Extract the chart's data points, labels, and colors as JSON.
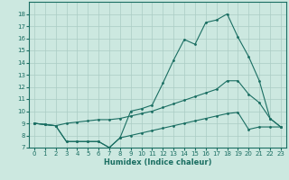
{
  "xlabel": "Humidex (Indice chaleur)",
  "background_color": "#cce8e0",
  "grid_color": "#aaccC4",
  "line_color": "#1a6e62",
  "xlim": [
    -0.5,
    23.5
  ],
  "ylim": [
    7,
    19
  ],
  "xticks": [
    0,
    1,
    2,
    3,
    4,
    5,
    6,
    7,
    8,
    9,
    10,
    11,
    12,
    13,
    14,
    15,
    16,
    17,
    18,
    19,
    20,
    21,
    22,
    23
  ],
  "yticks": [
    7,
    8,
    9,
    10,
    11,
    12,
    13,
    14,
    15,
    16,
    17,
    18
  ],
  "line1_x": [
    0,
    1,
    2,
    3,
    4,
    5,
    6,
    7,
    8,
    9,
    10,
    11,
    12,
    13,
    14,
    15,
    16,
    17,
    18,
    19,
    20,
    21,
    22,
    23
  ],
  "line1_y": [
    9.0,
    8.9,
    8.8,
    7.5,
    7.5,
    7.5,
    7.5,
    7.0,
    7.8,
    8.0,
    8.2,
    8.4,
    8.6,
    8.8,
    9.0,
    9.2,
    9.4,
    9.6,
    9.8,
    9.9,
    8.5,
    8.7,
    8.7,
    8.7
  ],
  "line2_x": [
    0,
    1,
    2,
    3,
    4,
    5,
    6,
    7,
    8,
    9,
    10,
    11,
    12,
    13,
    14,
    15,
    16,
    17,
    18,
    19,
    20,
    21,
    22,
    23
  ],
  "line2_y": [
    9.0,
    8.9,
    8.8,
    7.5,
    7.5,
    7.5,
    7.5,
    7.0,
    7.8,
    10.0,
    10.2,
    10.5,
    12.3,
    14.2,
    15.9,
    15.5,
    17.3,
    17.5,
    18.0,
    16.1,
    14.5,
    12.5,
    9.4,
    8.7
  ],
  "line3_x": [
    0,
    1,
    2,
    3,
    4,
    5,
    6,
    7,
    8,
    9,
    10,
    11,
    12,
    13,
    14,
    15,
    16,
    17,
    18,
    19,
    20,
    21,
    22,
    23
  ],
  "line3_y": [
    9.0,
    8.9,
    8.8,
    9.0,
    9.1,
    9.2,
    9.3,
    9.3,
    9.4,
    9.6,
    9.8,
    10.0,
    10.3,
    10.6,
    10.9,
    11.2,
    11.5,
    11.8,
    12.5,
    12.5,
    11.4,
    10.7,
    9.4,
    8.7
  ]
}
